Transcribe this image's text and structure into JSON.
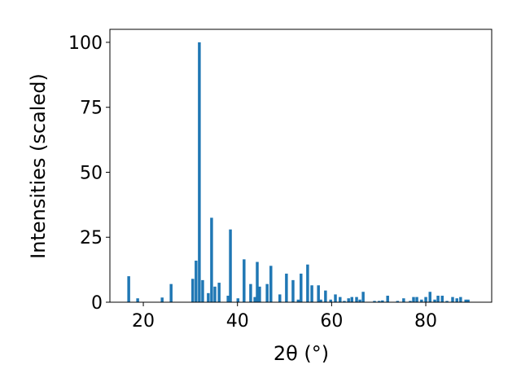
{
  "chart_data": {
    "type": "bar",
    "xlabel": "2θ (°)",
    "ylabel": "Intensities (scaled)",
    "color": "#1f77b4",
    "x": [
      16.9,
      18.8,
      24.0,
      25.9,
      30.5,
      31.2,
      31.9,
      32.6,
      33.8,
      34.5,
      35.2,
      36.1,
      38.0,
      38.5,
      40.1,
      41.4,
      42.8,
      43.7,
      44.2,
      44.7,
      46.3,
      47.1,
      49.0,
      50.4,
      51.8,
      52.9,
      53.5,
      54.9,
      55.8,
      57.2,
      57.7,
      58.7,
      59.8,
      60.8,
      61.8,
      62.7,
      63.6,
      64.3,
      65.3,
      66.0,
      66.7,
      69.1,
      70.1,
      70.8,
      71.9,
      74.0,
      75.3,
      76.7,
      77.4,
      78.1,
      79.1,
      80.0,
      80.9,
      81.9,
      82.6,
      83.5,
      84.5,
      85.7,
      86.6,
      87.4,
      88.5,
      89.0
    ],
    "values": [
      10,
      1.5,
      1.8,
      7,
      9,
      16,
      100,
      8.5,
      3.5,
      32.5,
      6,
      7.5,
      2.5,
      28,
      1.5,
      16.5,
      7,
      2,
      15.5,
      6,
      7,
      14,
      3,
      11,
      8.5,
      1,
      11,
      14.5,
      6.5,
      6.5,
      1,
      4.5,
      1,
      3,
      2,
      0.5,
      1.5,
      2,
      2,
      1,
      4,
      0.5,
      0.5,
      0.7,
      2.5,
      0.5,
      1.5,
      0.5,
      2,
      2,
      1,
      2,
      4,
      1,
      2.5,
      2.5,
      0.5,
      2,
      1.5,
      2,
      1,
      1
    ],
    "xlim": [
      12.9,
      94.0
    ],
    "xticks": [
      20,
      40,
      60,
      80
    ],
    "ylim": [
      0,
      105
    ],
    "yticks": [
      0,
      25,
      50,
      75,
      100
    ]
  }
}
